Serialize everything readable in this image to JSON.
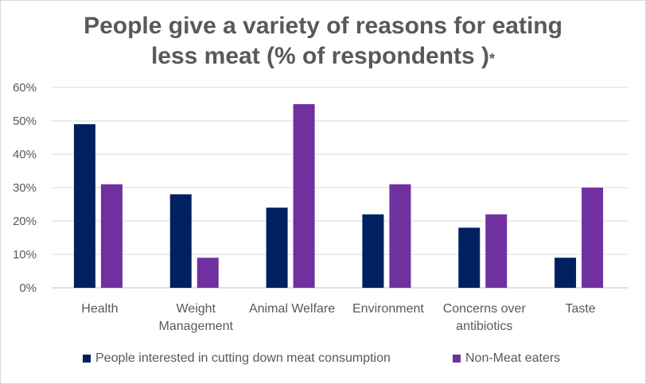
{
  "chart_data": {
    "type": "bar",
    "title_line1": "People give a variety of reasons for eating",
    "title_line2": "less meat  (% of respondents )",
    "title_mark": "*",
    "categories": [
      [
        "Health"
      ],
      [
        "Weight",
        "Management"
      ],
      [
        "Animal Welfare"
      ],
      [
        "Environment"
      ],
      [
        "Concerns over",
        "antibiotics"
      ],
      [
        "Taste"
      ]
    ],
    "series": [
      {
        "name": "People interested in cutting down meat consumption",
        "color": "#002060",
        "values": [
          49,
          28,
          24,
          22,
          18,
          9
        ]
      },
      {
        "name": "Non-Meat eaters",
        "color": "#7030a0",
        "values": [
          31,
          9,
          55,
          31,
          22,
          30
        ]
      }
    ],
    "ylim": [
      0,
      60
    ],
    "yticks": [
      "0%",
      "10%",
      "20%",
      "30%",
      "40%",
      "50%",
      "60%"
    ],
    "grid": true,
    "legend_position": "bottom"
  }
}
